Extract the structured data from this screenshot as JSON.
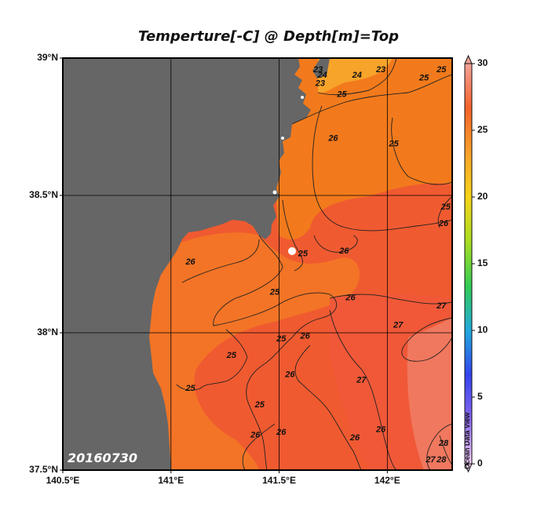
{
  "title": "Temperture[-C] @ Depth[m]=Top",
  "date_label": "20160730",
  "watermark": "Ocean Data View",
  "lat_labels": [
    {
      "value": 39.0,
      "label": "39°N"
    },
    {
      "value": 38.5,
      "label": "38.5°N"
    },
    {
      "value": 38.0,
      "label": "38°N"
    },
    {
      "value": 37.5,
      "label": "37.5°N"
    }
  ],
  "lon_labels": [
    {
      "value": 140.5,
      "label": "140.5°E"
    },
    {
      "value": 141.0,
      "label": "141°E"
    },
    {
      "value": 141.5,
      "label": "141.5°E"
    },
    {
      "value": 142.0,
      "label": "142°E"
    }
  ],
  "map_extent": {
    "lon_min": 140.5,
    "lon_max": 142.3,
    "lat_min": 37.5,
    "lat_max": 39.0
  },
  "colorbar": {
    "min": 0,
    "max": 30,
    "ticks": [
      "0",
      "5",
      "10",
      "15",
      "20",
      "25",
      "30"
    ],
    "colors": [
      "#f5cdfa",
      "#8866ee",
      "#3344ee",
      "#22aadd",
      "#33cc55",
      "#aadd22",
      "#f7d419",
      "#f8a12a",
      "#f4622a",
      "#f3a39a"
    ]
  },
  "colors": {
    "land": "#666666",
    "sea_warm": "#f26a36",
    "sea_cooler": "#f2801d",
    "sea_coolest": "#f7b52a",
    "contour": "#222222"
  },
  "contour_labels": [
    {
      "text": "23",
      "lon": 141.68,
      "lat": 38.96
    },
    {
      "text": "23",
      "lon": 141.69,
      "lat": 38.91
    },
    {
      "text": "24",
      "lon": 141.7,
      "lat": 38.94
    },
    {
      "text": "23",
      "lon": 141.97,
      "lat": 38.96
    },
    {
      "text": "24",
      "lon": 141.86,
      "lat": 38.94
    },
    {
      "text": "25",
      "lon": 142.25,
      "lat": 38.96
    },
    {
      "text": "25",
      "lon": 142.17,
      "lat": 38.93
    },
    {
      "text": "25",
      "lon": 141.79,
      "lat": 38.87
    },
    {
      "text": "26",
      "lon": 141.75,
      "lat": 38.71
    },
    {
      "text": "25",
      "lon": 142.03,
      "lat": 38.69
    },
    {
      "text": "25",
      "lon": 142.27,
      "lat": 38.46
    },
    {
      "text": "26",
      "lon": 142.26,
      "lat": 38.4
    },
    {
      "text": "25",
      "lon": 141.61,
      "lat": 38.29
    },
    {
      "text": "26",
      "lon": 141.8,
      "lat": 38.3
    },
    {
      "text": "26",
      "lon": 141.09,
      "lat": 38.26
    },
    {
      "text": "25",
      "lon": 141.48,
      "lat": 38.15
    },
    {
      "text": "26",
      "lon": 141.83,
      "lat": 38.13
    },
    {
      "text": "27",
      "lon": 142.25,
      "lat": 38.1
    },
    {
      "text": "27",
      "lon": 142.05,
      "lat": 38.03
    },
    {
      "text": "25",
      "lon": 141.51,
      "lat": 37.98
    },
    {
      "text": "26",
      "lon": 141.62,
      "lat": 37.99
    },
    {
      "text": "25",
      "lon": 141.28,
      "lat": 37.92
    },
    {
      "text": "26",
      "lon": 141.55,
      "lat": 37.85
    },
    {
      "text": "27",
      "lon": 141.88,
      "lat": 37.83
    },
    {
      "text": "25",
      "lon": 141.09,
      "lat": 37.8
    },
    {
      "text": "25",
      "lon": 141.41,
      "lat": 37.74
    },
    {
      "text": "26",
      "lon": 141.97,
      "lat": 37.65
    },
    {
      "text": "26",
      "lon": 141.85,
      "lat": 37.62
    },
    {
      "text": "26",
      "lon": 141.39,
      "lat": 37.63
    },
    {
      "text": "26",
      "lon": 141.51,
      "lat": 37.64
    },
    {
      "text": "28",
      "lon": 142.26,
      "lat": 37.6
    },
    {
      "text": "27",
      "lon": 142.2,
      "lat": 37.54
    },
    {
      "text": "28",
      "lon": 142.25,
      "lat": 37.54
    }
  ]
}
